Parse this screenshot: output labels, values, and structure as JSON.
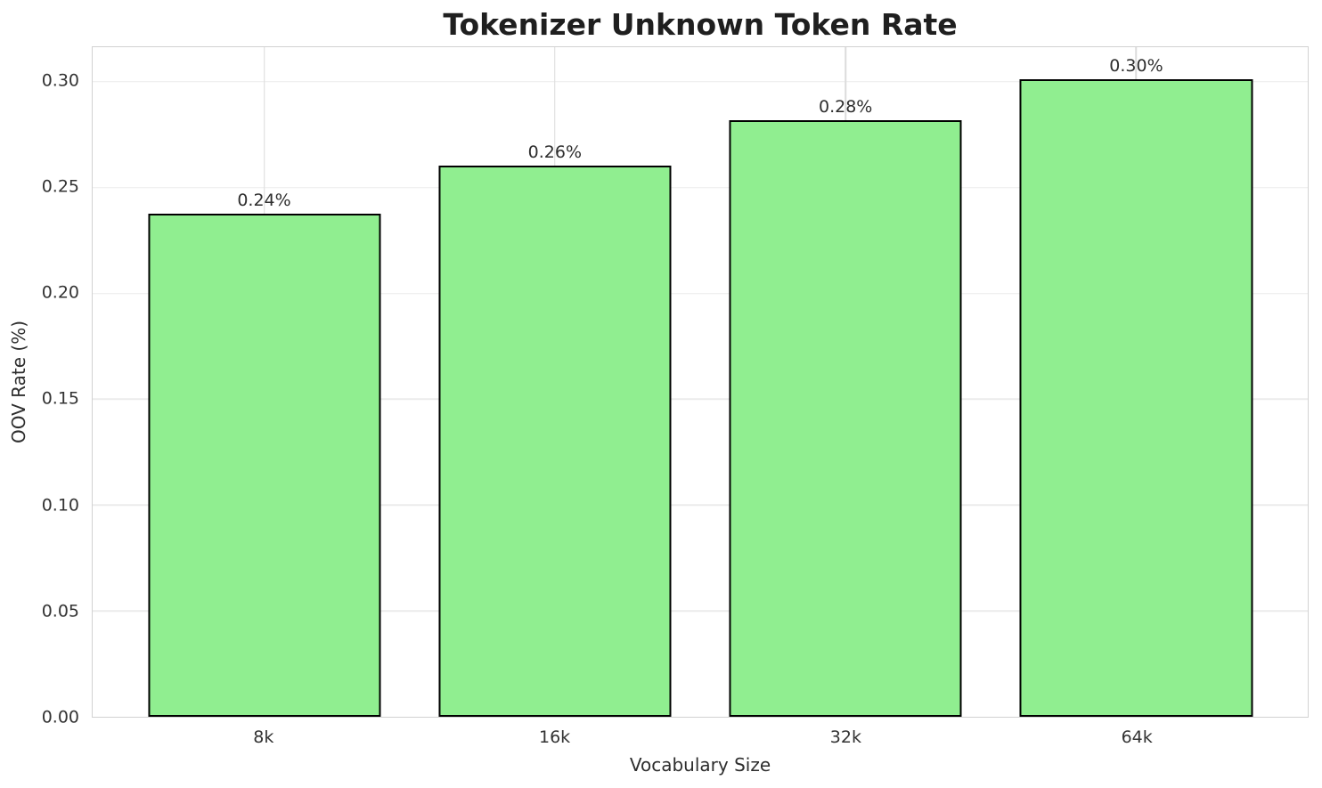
{
  "chart_data": {
    "type": "bar",
    "title": "Tokenizer Unknown Token Rate",
    "xlabel": "Vocabulary Size",
    "ylabel": "OOV Rate (%)",
    "categories": [
      "8k",
      "16k",
      "32k",
      "64k"
    ],
    "values": [
      0.2375,
      0.2605,
      0.2818,
      0.3012
    ],
    "bar_labels": [
      "0.24%",
      "0.26%",
      "0.28%",
      "0.30%"
    ],
    "yticks": [
      "0.00",
      "0.05",
      "0.10",
      "0.15",
      "0.20",
      "0.25",
      "0.30"
    ],
    "ylim": [
      0,
      0.3163
    ],
    "xlim": [
      -0.59,
      3.59
    ],
    "bar_width": 0.8,
    "grid": true,
    "legend": "none",
    "colors": {
      "bar_fill": "#90EE90",
      "bar_edge": "#000000",
      "grid_horizontal": "#ececec",
      "grid_vertical": "#dcdcdc",
      "spine": "#d2d2d2",
      "title_text": "#1f1f1f",
      "tick_text": "#333333",
      "background": "#ffffff"
    }
  }
}
